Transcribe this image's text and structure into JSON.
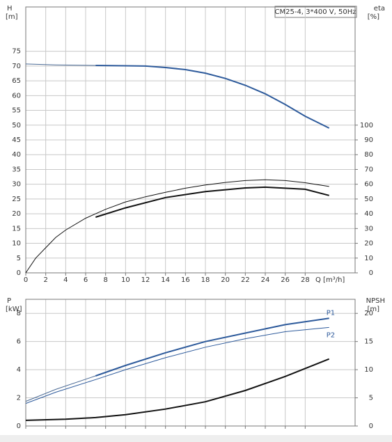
{
  "chart_data": [
    {
      "type": "line",
      "title": "CM25-4, 3*400 V, 50Hz",
      "ylabel": "H",
      "yunit": "[m]",
      "y2label": "eta",
      "y2unit": "[%]",
      "xlabel": "Q [m³/h]",
      "xlim": [
        0,
        33
      ],
      "ylim": [
        0,
        90
      ],
      "y2lim": [
        0,
        180
      ],
      "xticks": [
        0,
        2,
        4,
        6,
        8,
        10,
        12,
        14,
        16,
        18,
        20,
        22,
        24,
        26,
        28
      ],
      "yticks": [
        0,
        5,
        10,
        15,
        20,
        25,
        30,
        35,
        40,
        45,
        50,
        55,
        60,
        65,
        70,
        75
      ],
      "y2ticks": [
        0,
        10,
        20,
        30,
        40,
        50,
        60,
        70,
        80,
        90,
        100
      ],
      "grid": true,
      "series": [
        {
          "color": "#4a6a95",
          "width": 1,
          "x": [
            0,
            3,
            7
          ],
          "values": [
            70.7,
            70.4,
            70.2
          ]
        },
        {
          "color": "#2d5a9b",
          "width": 2,
          "x": [
            7,
            10,
            12,
            14,
            16,
            18,
            20,
            22,
            24,
            26,
            28,
            30.4
          ],
          "values": [
            70.2,
            70.1,
            70,
            69.5,
            68.8,
            67.6,
            65.8,
            63.5,
            60.6,
            57,
            53,
            49
          ]
        },
        {
          "color": "#111111",
          "width": 1,
          "axis": "y2",
          "x": [
            0,
            1,
            2,
            3,
            4,
            6,
            8,
            10,
            12,
            14,
            16,
            18,
            20,
            22,
            24,
            26,
            28,
            30.4
          ],
          "values": [
            0,
            10,
            17,
            24,
            29,
            37,
            43,
            48,
            51.5,
            54.5,
            57.3,
            59.5,
            61.2,
            62.5,
            63,
            62.5,
            61,
            58.5
          ]
        },
        {
          "color": "#111111",
          "width": 2,
          "axis": "y2",
          "x": [
            7,
            10,
            14,
            18,
            22,
            24,
            28,
            30.4
          ],
          "values": [
            37.7,
            44,
            51,
            55,
            57.5,
            58,
            56.6,
            52.4
          ]
        }
      ]
    },
    {
      "type": "line",
      "ylabel": "P",
      "yunit": "[kW]",
      "y2label": "NPSH",
      "y2unit": "[m]",
      "xlim": [
        0,
        33
      ],
      "ylim": [
        0,
        9
      ],
      "y2lim": [
        0,
        22.5
      ],
      "yticks": [
        0,
        2,
        4,
        6,
        8
      ],
      "y2ticks": [
        0,
        5,
        10,
        15,
        20
      ],
      "grid": true,
      "series": [
        {
          "color": "#4a6a95",
          "width": 1,
          "x": [
            0,
            3,
            7
          ],
          "values": [
            1.75,
            2.6,
            3.56
          ]
        },
        {
          "name": "P1",
          "color": "#2d5a9b",
          "width": 2,
          "x": [
            7,
            10,
            14,
            18,
            22,
            26,
            30.4
          ],
          "values": [
            3.56,
            4.3,
            5.2,
            6.0,
            6.6,
            7.2,
            7.65
          ]
        },
        {
          "name": "P2",
          "color": "#2d5a9b",
          "width": 1,
          "x": [
            0,
            3,
            7,
            10,
            14,
            18,
            22,
            26,
            30.4
          ],
          "values": [
            1.6,
            2.4,
            3.3,
            4.0,
            4.85,
            5.6,
            6.2,
            6.7,
            7.0
          ]
        },
        {
          "color": "#111111",
          "width": 2,
          "axis": "y2",
          "x": [
            0,
            4,
            7,
            10,
            14,
            18,
            22,
            26,
            30.4
          ],
          "values": [
            1.0,
            1.2,
            1.5,
            2.0,
            3.0,
            4.3,
            6.3,
            8.8,
            11.9
          ]
        }
      ]
    }
  ]
}
